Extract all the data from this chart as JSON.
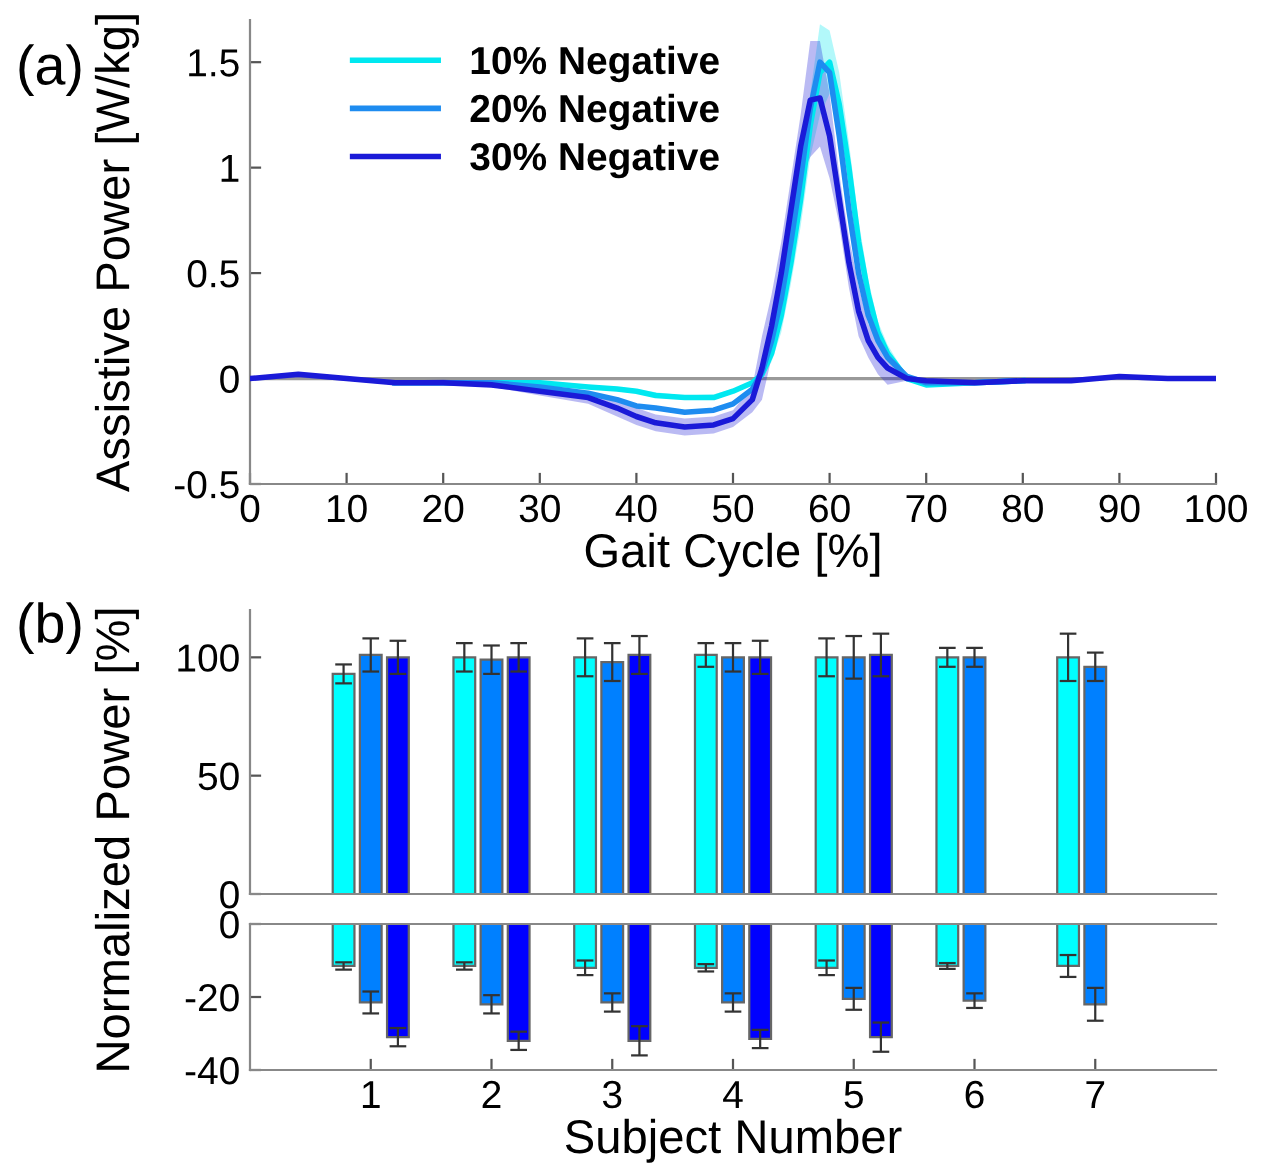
{
  "chart_data": [
    {
      "type": "line",
      "annotations": [
        "(a)"
      ],
      "xlabel": "Gait Cycle [%]",
      "ylabel": "Assistive Power [W/kg]",
      "x": [
        0,
        5,
        10,
        15,
        20,
        25,
        30,
        35,
        38,
        40,
        42,
        45,
        48,
        50,
        52,
        53,
        54,
        55,
        56,
        57,
        58,
        59,
        60,
        61,
        62,
        63,
        64,
        65,
        66,
        68,
        70,
        75,
        80,
        85,
        90,
        95,
        100
      ],
      "series": [
        {
          "name": "10% Negative",
          "color": "#00e8f0",
          "values": [
            null,
            null,
            null,
            -0.02,
            -0.02,
            -0.02,
            -0.02,
            -0.04,
            -0.05,
            -0.06,
            -0.08,
            -0.09,
            -0.09,
            -0.06,
            -0.02,
            0.02,
            0.12,
            0.3,
            0.55,
            0.85,
            1.2,
            1.45,
            1.5,
            1.3,
            1.0,
            0.65,
            0.4,
            0.22,
            0.12,
            0,
            -0.03,
            -0.02,
            -0.01,
            null,
            null,
            null,
            null
          ],
          "lower": [
            0,
            0.01,
            -0.005,
            -0.025,
            -0.02,
            -0.02,
            -0.03,
            -0.05,
            -0.06,
            -0.07,
            -0.085,
            -0.1,
            -0.095,
            -0.07,
            -0.03,
            0,
            0.08,
            0.22,
            0.45,
            0.72,
            1.05,
            1.25,
            1.35,
            1.15,
            0.88,
            0.55,
            0.33,
            0.17,
            0.08,
            -0.01,
            -0.04,
            -0.02,
            -0.015,
            -0.01,
            0,
            -0.005,
            0
          ],
          "upper": [
            0,
            0.02,
            0.005,
            -0.015,
            -0.01,
            -0.01,
            -0.01,
            -0.03,
            -0.04,
            -0.05,
            -0.065,
            -0.08,
            -0.075,
            -0.05,
            -0.01,
            0.04,
            0.16,
            0.38,
            0.65,
            0.98,
            1.35,
            1.68,
            1.65,
            1.45,
            1.12,
            0.75,
            0.47,
            0.27,
            0.16,
            0.01,
            -0.02,
            -0.01,
            -0.005,
            0,
            0.01,
            0.005,
            0
          ]
        },
        {
          "name": "20% Negative",
          "color": "#1e8cf0",
          "values": [
            null,
            null,
            null,
            -0.02,
            -0.02,
            -0.02,
            -0.04,
            -0.07,
            -0.1,
            -0.13,
            -0.14,
            -0.16,
            -0.15,
            -0.12,
            -0.05,
            0.03,
            0.18,
            0.38,
            0.65,
            0.95,
            1.28,
            1.5,
            1.45,
            1.15,
            0.8,
            0.5,
            0.3,
            0.18,
            0.1,
            0.01,
            -0.02,
            -0.02,
            -0.01,
            null,
            null,
            null,
            null
          ]
        },
        {
          "name": "30% Negative",
          "color": "#1a1ad8",
          "values": [
            0,
            0.02,
            0,
            -0.02,
            -0.02,
            -0.03,
            -0.06,
            -0.09,
            -0.14,
            -0.18,
            -0.21,
            -0.23,
            -0.22,
            -0.19,
            -0.1,
            0.05,
            0.25,
            0.5,
            0.8,
            1.1,
            1.32,
            1.33,
            1.15,
            0.85,
            0.55,
            0.32,
            0.18,
            0.1,
            0.05,
            0,
            -0.01,
            -0.02,
            -0.01,
            -0.01,
            0.01,
            0,
            0
          ],
          "lower": [
            -0.01,
            0.005,
            -0.01,
            -0.03,
            -0.025,
            -0.04,
            -0.08,
            -0.12,
            -0.18,
            -0.22,
            -0.25,
            -0.27,
            -0.26,
            -0.23,
            -0.16,
            -0.1,
            0.1,
            0.35,
            0.65,
            0.95,
            1.05,
            1.1,
            0.95,
            0.73,
            0.43,
            0.2,
            0.1,
            0.02,
            -0.03,
            -0.01,
            -0.02,
            -0.025,
            -0.02,
            -0.015,
            -0.005,
            -0.01,
            -0.01
          ],
          "upper": [
            0.01,
            0.025,
            0.01,
            -0.01,
            -0.005,
            -0.02,
            -0.04,
            -0.06,
            -0.1,
            -0.14,
            -0.17,
            -0.19,
            -0.18,
            -0.15,
            -0.04,
            0.2,
            0.4,
            0.65,
            0.95,
            1.25,
            1.6,
            1.6,
            1.35,
            0.97,
            0.67,
            0.44,
            0.26,
            0.18,
            0.13,
            0.01,
            0,
            -0.005,
            0,
            0.005,
            0.015,
            0.01,
            0.01
          ]
        }
      ],
      "xlim": [
        0,
        100
      ],
      "xticks": [
        0,
        10,
        20,
        30,
        40,
        50,
        60,
        70,
        80,
        90,
        100
      ],
      "ylim": [
        -0.5,
        1.7
      ],
      "yticks": [
        -0.5,
        0,
        0.5,
        1,
        1.5
      ],
      "ref_lines": [
        {
          "axis": "y",
          "value": 0,
          "color": "#999999"
        }
      ],
      "legend": "top left",
      "grid": false
    },
    {
      "type": "bar",
      "annotations": [
        "(b)"
      ],
      "ylabel": "Normalized Power [%]",
      "tick_labels": "y",
      "x": [
        1,
        2,
        3,
        4,
        5,
        6,
        7
      ],
      "series": [
        {
          "color": "#00ffff",
          "values": [
            93,
            100,
            100,
            101,
            100,
            100,
            100
          ],
          "errors": [
            4,
            6,
            8,
            5,
            8,
            4,
            10
          ]
        },
        {
          "color": "#0080ff",
          "values": [
            101,
            99,
            98,
            100,
            100,
            100,
            96
          ],
          "errors": [
            7,
            6,
            8,
            6,
            9,
            4,
            6
          ]
        },
        {
          "color": "#0000ff",
          "values": [
            100,
            100,
            101,
            100,
            101,
            null,
            null
          ],
          "errors": [
            7,
            6,
            8,
            7,
            9,
            null,
            null
          ]
        }
      ],
      "xlim": [
        0,
        8
      ],
      "xticks": [
        1,
        2,
        3,
        4,
        5,
        6,
        7
      ],
      "ylim": [
        0,
        120
      ],
      "yticks": [
        0,
        50,
        100
      ],
      "grid": false
    },
    {
      "type": "bar",
      "xlabel": "Subject Number",
      "x": [
        1,
        2,
        3,
        4,
        5,
        6,
        7
      ],
      "series": [
        {
          "color": "#00ffff",
          "values": [
            -11.5,
            -11.5,
            -12,
            -12,
            -12,
            -11.5,
            -11.5
          ],
          "errors": [
            1,
            1,
            2,
            1,
            2,
            0.8,
            3
          ]
        },
        {
          "color": "#0080ff",
          "values": [
            -21.5,
            -22,
            -21.5,
            -21.5,
            -20.5,
            -21,
            -22
          ],
          "errors": [
            3,
            2.5,
            2.5,
            2.5,
            3,
            2,
            4.5
          ]
        },
        {
          "color": "#0000ff",
          "values": [
            -31,
            -32,
            -32,
            -31.5,
            -31,
            null,
            null
          ],
          "errors": [
            2.5,
            2.5,
            4,
            2.5,
            4,
            null,
            null
          ]
        }
      ],
      "xlim": [
        0,
        8
      ],
      "xticks": [
        1,
        2,
        3,
        4,
        5,
        6,
        7
      ],
      "ylim": [
        -40,
        0
      ],
      "yticks": [
        0,
        -20,
        -40
      ],
      "grid": false
    }
  ]
}
